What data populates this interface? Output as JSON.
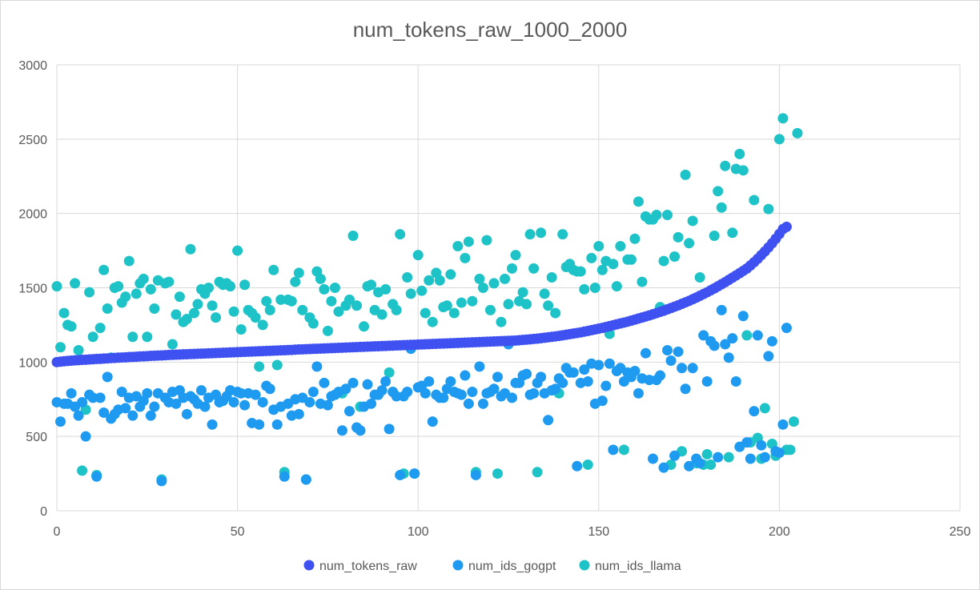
{
  "chart_data": {
    "type": "scatter",
    "title": "num_tokens_raw_1000_2000",
    "xlim": [
      0,
      250
    ],
    "ylim": [
      0,
      3000
    ],
    "x_ticks": [
      "0",
      "50",
      "100",
      "150",
      "200",
      "250"
    ],
    "y_ticks": [
      "0",
      "500",
      "1000",
      "1500",
      "2000",
      "2500",
      "3000"
    ],
    "grid": true,
    "legend_position": "bottom",
    "series": [
      {
        "name": "num_tokens_raw",
        "color": "#3f51f0",
        "x_start": 0,
        "values": [
          1000,
          1003,
          1006,
          1008,
          1010,
          1012,
          1013,
          1015,
          1016,
          1018,
          1019,
          1021,
          1022,
          1024,
          1025,
          1027,
          1028,
          1030,
          1031,
          1032,
          1034,
          1035,
          1036,
          1038,
          1039,
          1040,
          1042,
          1043,
          1044,
          1045,
          1046,
          1048,
          1049,
          1050,
          1051,
          1052,
          1053,
          1054,
          1055,
          1056,
          1057,
          1058,
          1059,
          1060,
          1061,
          1062,
          1063,
          1064,
          1065,
          1066,
          1067,
          1068,
          1069,
          1070,
          1071,
          1072,
          1073,
          1074,
          1075,
          1076,
          1077,
          1078,
          1079,
          1080,
          1081,
          1082,
          1084,
          1085,
          1086,
          1087,
          1088,
          1089,
          1090,
          1091,
          1092,
          1093,
          1094,
          1095,
          1096,
          1097,
          1098,
          1099,
          1100,
          1101,
          1102,
          1103,
          1104,
          1105,
          1106,
          1107,
          1108,
          1109,
          1110,
          1111,
          1112,
          1113,
          1114,
          1115,
          1116,
          1117,
          1118,
          1119,
          1120,
          1121,
          1122,
          1123,
          1124,
          1125,
          1126,
          1127,
          1128,
          1129,
          1130,
          1131,
          1132,
          1133,
          1134,
          1135,
          1136,
          1137,
          1138,
          1139,
          1140,
          1141,
          1142,
          1143,
          1144,
          1145,
          1147,
          1149,
          1151,
          1153,
          1156,
          1158,
          1161,
          1164,
          1167,
          1170,
          1173,
          1176,
          1180,
          1184,
          1188,
          1192,
          1196,
          1200,
          1205,
          1210,
          1215,
          1220,
          1225,
          1230,
          1236,
          1242,
          1248,
          1254,
          1260,
          1266,
          1272,
          1279,
          1286,
          1293,
          1300,
          1307,
          1314,
          1322,
          1330,
          1338,
          1346,
          1355,
          1364,
          1373,
          1382,
          1392,
          1402,
          1412,
          1423,
          1434,
          1446,
          1458,
          1470,
          1483,
          1496,
          1510,
          1524,
          1538,
          1553,
          1568,
          1583,
          1598,
          1614,
          1630,
          1650,
          1672,
          1695,
          1720,
          1745,
          1772,
          1800,
          1830,
          1862,
          1895,
          1910
        ]
      },
      {
        "name": "num_ids_gogpt",
        "color": "#1e9bf0",
        "x_start": 0,
        "values": [
          730,
          600,
          720,
          720,
          790,
          700,
          640,
          730,
          500,
          780,
          760,
          230,
          760,
          660,
          900,
          620,
          650,
          680,
          800,
          690,
          760,
          640,
          770,
          700,
          740,
          790,
          640,
          700,
          790,
          200,
          760,
          730,
          800,
          720,
          810,
          760,
          650,
          770,
          750,
          720,
          810,
          700,
          760,
          580,
          780,
          730,
          740,
          770,
          810,
          730,
          800,
          790,
          710,
          790,
          590,
          780,
          580,
          730,
          840,
          820,
          680,
          580,
          700,
          230,
          720,
          640,
          750,
          650,
          760,
          210,
          730,
          800,
          970,
          720,
          860,
          710,
          770,
          780,
          800,
          540,
          820,
          670,
          860,
          560,
          540,
          700,
          850,
          720,
          780,
          780,
          810,
          870,
          550,
          800,
          770,
          240,
          770,
          800,
          1090,
          250,
          830,
          840,
          790,
          870,
          600,
          780,
          760,
          760,
          820,
          870,
          800,
          790,
          780,
          910,
          720,
          800,
          240,
          970,
          720,
          790,
          800,
          820,
          900,
          770,
          790,
          1120,
          760,
          860,
          860,
          910,
          920,
          780,
          790,
          860,
          900,
          790,
          610,
          810,
          820,
          890,
          860,
          960,
          930,
          930,
          300,
          860,
          950,
          870,
          990,
          720,
          980,
          740,
          840,
          990,
          410,
          940,
          960,
          870,
          930,
          900,
          940,
          790,
          890,
          1060,
          880,
          350,
          880,
          910,
          290,
          1080,
          1010,
          370,
          1070,
          960,
          820,
          300,
          960,
          350,
          320,
          1180,
          870,
          1140,
          1110,
          360,
          1350,
          1120,
          1030,
          1160,
          870,
          430,
          1310,
          460,
          350,
          670,
          1180,
          440,
          360,
          1040,
          1140,
          400,
          390,
          580,
          1230
        ]
      },
      {
        "name": "num_ids_llama",
        "color": "#1ec3c8",
        "x_start": 0,
        "values": [
          1510,
          1100,
          1330,
          1250,
          1240,
          1530,
          1080,
          270,
          680,
          1470,
          1170,
          240,
          1230,
          1620,
          1360,
          1030,
          1500,
          1510,
          1400,
          1440,
          1680,
          1170,
          1460,
          1530,
          1560,
          1170,
          1490,
          1360,
          1550,
          210,
          1530,
          1540,
          1120,
          1320,
          1440,
          1270,
          1290,
          1760,
          1330,
          1390,
          1490,
          1460,
          1500,
          1380,
          1300,
          1540,
          1520,
          1530,
          1510,
          1340,
          1750,
          1220,
          1520,
          1350,
          1330,
          1300,
          970,
          1250,
          1410,
          1350,
          1620,
          980,
          1420,
          260,
          1420,
          1410,
          1540,
          1600,
          1350,
          210,
          1300,
          1260,
          1610,
          1560,
          1490,
          1210,
          1410,
          1500,
          1340,
          790,
          1380,
          1420,
          1850,
          1380,
          700,
          1240,
          1510,
          1520,
          1350,
          1470,
          1320,
          1490,
          930,
          1390,
          1350,
          1860,
          250,
          1570,
          1460,
          250,
          1720,
          1480,
          1330,
          1550,
          1270,
          1600,
          1550,
          1370,
          1380,
          1590,
          1330,
          1780,
          1400,
          1700,
          1810,
          1410,
          260,
          1560,
          1500,
          1820,
          1350,
          1530,
          250,
          1270,
          1560,
          1390,
          1630,
          1720,
          1410,
          1470,
          1390,
          1860,
          1630,
          260,
          1870,
          1460,
          1380,
          1570,
          1330,
          790,
          1860,
          1640,
          1660,
          1620,
          1610,
          1610,
          1490,
          310,
          1700,
          1500,
          1780,
          1620,
          1680,
          1190,
          1660,
          1510,
          1780,
          410,
          1690,
          1690,
          1830,
          2080,
          1540,
          1980,
          1960,
          1960,
          1990,
          1370,
          1680,
          1990,
          310,
          1710,
          1840,
          400,
          2260,
          1800,
          1950,
          320,
          1570,
          310,
          380,
          310,
          1850,
          2150,
          2040,
          2320,
          360,
          1870,
          2300,
          2400,
          2290,
          1180,
          460,
          2090,
          490,
          350,
          690,
          2030,
          450,
          370,
          2500,
          2640,
          410,
          410,
          600,
          2540
        ]
      }
    ]
  }
}
